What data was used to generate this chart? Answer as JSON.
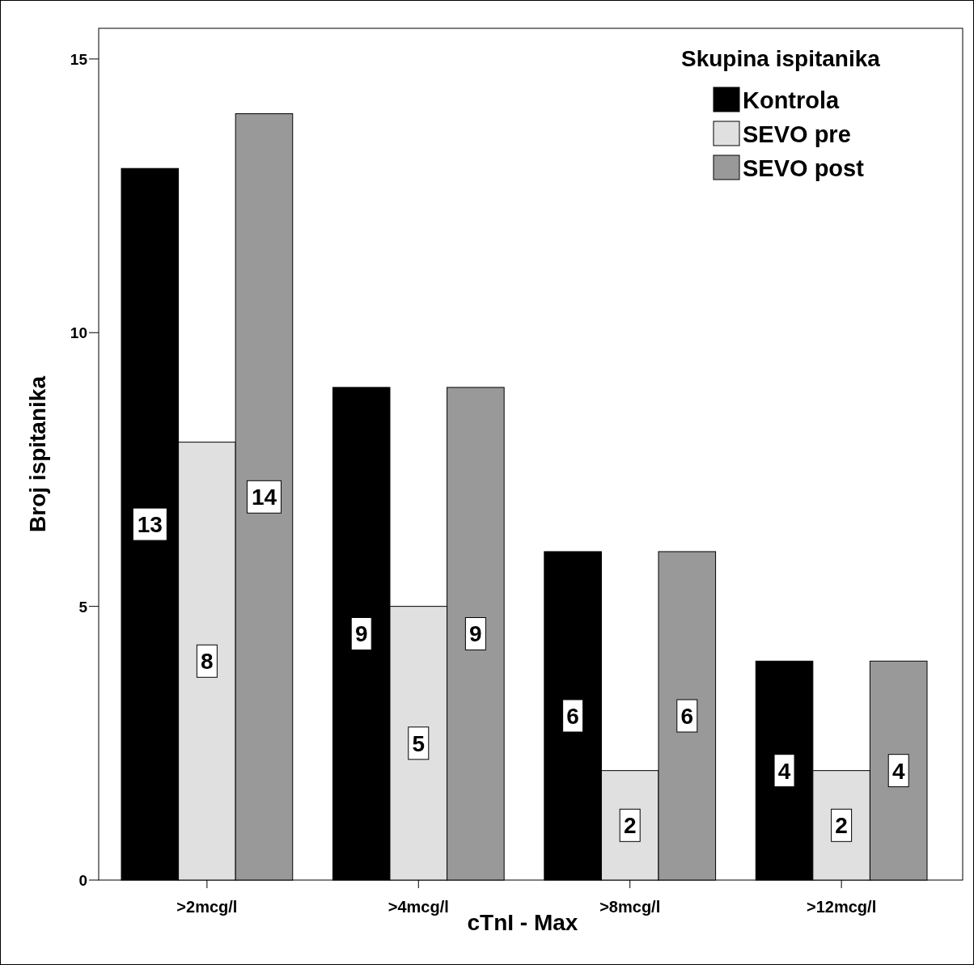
{
  "chart_data": {
    "type": "bar",
    "xlabel": "cTnI - Max",
    "ylabel": "Broj ispitanika",
    "legend_title": "Skupina ispitanika",
    "legend": "top right",
    "categories": [
      ">2mcg/l",
      ">4mcg/l",
      ">8mcg/l",
      ">12mcg/l"
    ],
    "series": [
      {
        "name": "Kontrola",
        "color": "#000000",
        "values": [
          13,
          9,
          6,
          4
        ]
      },
      {
        "name": "SEVO pre",
        "color": "#e0e0e0",
        "values": [
          8,
          5,
          2,
          2
        ]
      },
      {
        "name": "SEVO post",
        "color": "#999999",
        "values": [
          14,
          9,
          6,
          4
        ]
      }
    ],
    "ylim": [
      0,
      15.56
    ],
    "yticks": [
      0,
      5,
      10,
      15
    ],
    "grid": false,
    "data_labels": true
  }
}
